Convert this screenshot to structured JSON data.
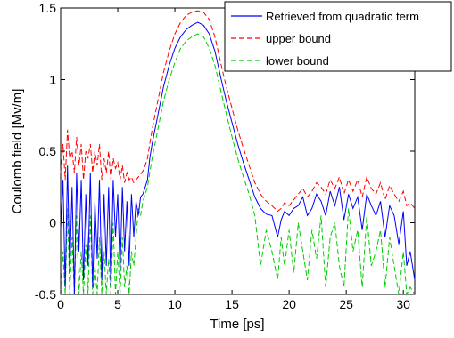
{
  "chart_data": {
    "type": "line",
    "title": "",
    "xlabel": "Time [ps]",
    "ylabel": "Coulomb field [Mv/m]",
    "xlim": [
      0,
      31
    ],
    "ylim": [
      -0.5,
      1.5
    ],
    "xticks": [
      0,
      5,
      10,
      15,
      20,
      25,
      30
    ],
    "xtick_labels": [
      "0",
      "5",
      "10",
      "15",
      "20",
      "25",
      "30"
    ],
    "yticks": [
      -0.5,
      0,
      0.5,
      1,
      1.5
    ],
    "ytick_labels": [
      "-0.5",
      "0",
      "0.5",
      "1",
      "1.5"
    ],
    "grid": false,
    "legend_position": "top-right",
    "series": [
      {
        "name": "Retrieved from quadratic term",
        "color": "#0000ff",
        "style": "solid",
        "x": [
          0,
          0.2,
          0.4,
          0.6,
          0.8,
          1,
          1.2,
          1.4,
          1.6,
          1.8,
          2,
          2.2,
          2.4,
          2.6,
          2.8,
          3,
          3.2,
          3.4,
          3.6,
          3.8,
          4,
          4.2,
          4.4,
          4.6,
          4.8,
          5,
          5.2,
          5.4,
          5.6,
          5.8,
          6,
          6.2,
          6.4,
          6.6,
          6.8,
          7,
          7.2,
          7.4,
          7.6,
          7.8,
          8,
          8.5,
          9,
          9.5,
          10,
          10.5,
          11,
          11.5,
          12,
          12.5,
          13,
          13.5,
          14,
          14.5,
          15,
          15.5,
          16,
          16.5,
          17,
          17.5,
          18,
          18.5,
          19,
          19.3,
          19.6,
          20,
          20.4,
          20.8,
          21.2,
          21.6,
          22,
          22.4,
          22.8,
          23.2,
          23.6,
          24,
          24.4,
          24.8,
          25.2,
          25.6,
          26,
          26.4,
          26.8,
          27.2,
          27.6,
          28,
          28.4,
          28.8,
          29.2,
          29.6,
          30,
          30.3,
          30.6,
          31
        ],
        "y": [
          -0.05,
          0.3,
          -0.45,
          0.4,
          -0.35,
          0.25,
          -0.5,
          0.35,
          -0.2,
          0.3,
          -0.4,
          0.2,
          -0.3,
          0.35,
          -0.45,
          0.15,
          -0.25,
          0.3,
          -0.4,
          0.2,
          -0.3,
          0.25,
          -0.45,
          0.3,
          -0.1,
          0.2,
          -0.35,
          0.25,
          -0.2,
          0.15,
          -0.3,
          0.2,
          -0.1,
          0.15,
          0.05,
          0.18,
          0.2,
          0.25,
          0.3,
          0.45,
          0.55,
          0.75,
          0.95,
          1.1,
          1.22,
          1.3,
          1.35,
          1.38,
          1.4,
          1.38,
          1.32,
          1.2,
          1.02,
          0.85,
          0.7,
          0.55,
          0.42,
          0.3,
          0.18,
          0.1,
          0.06,
          0.05,
          -0.1,
          0.02,
          0.08,
          0.05,
          0.1,
          0.12,
          0.18,
          0.05,
          0.1,
          0.2,
          0.15,
          0.05,
          0.22,
          0.12,
          0.25,
          0.02,
          0.2,
          0.1,
          0.18,
          -0.05,
          0.2,
          0.12,
          0.05,
          0.15,
          -0.1,
          0.12,
          0.05,
          -0.15,
          0.08,
          -0.3,
          -0.2,
          -0.4
        ]
      },
      {
        "name": "upper bound",
        "color": "#ff0000",
        "style": "dashed",
        "x": [
          0,
          0.2,
          0.4,
          0.6,
          0.8,
          1,
          1.2,
          1.4,
          1.6,
          1.8,
          2,
          2.2,
          2.4,
          2.6,
          2.8,
          3,
          3.2,
          3.4,
          3.6,
          3.8,
          4,
          4.2,
          4.4,
          4.6,
          4.8,
          5,
          5.2,
          5.4,
          5.6,
          5.8,
          6,
          6.2,
          6.4,
          6.6,
          6.8,
          7,
          7.2,
          7.4,
          7.6,
          7.8,
          8,
          8.5,
          9,
          9.5,
          10,
          10.5,
          11,
          11.5,
          12,
          12.5,
          13,
          13.5,
          14,
          14.5,
          15,
          15.5,
          16,
          16.5,
          17,
          17.5,
          18,
          18.5,
          19,
          19.3,
          19.6,
          20,
          20.4,
          20.8,
          21.2,
          21.6,
          22,
          22.4,
          22.8,
          23.2,
          23.6,
          24,
          24.4,
          24.8,
          25.2,
          25.6,
          26,
          26.4,
          26.8,
          27.2,
          27.6,
          28,
          28.4,
          28.8,
          29.2,
          29.6,
          30,
          30.3,
          30.6,
          31
        ],
        "y": [
          0.35,
          0.55,
          0.3,
          0.65,
          0.45,
          0.5,
          0.35,
          0.6,
          0.4,
          0.55,
          0.3,
          0.5,
          0.45,
          0.55,
          0.35,
          0.5,
          0.4,
          0.55,
          0.3,
          0.45,
          0.35,
          0.5,
          0.3,
          0.45,
          0.38,
          0.42,
          0.3,
          0.4,
          0.28,
          0.35,
          0.3,
          0.32,
          0.28,
          0.3,
          0.32,
          0.34,
          0.36,
          0.4,
          0.45,
          0.55,
          0.65,
          0.85,
          1.05,
          1.2,
          1.32,
          1.4,
          1.45,
          1.47,
          1.48,
          1.47,
          1.42,
          1.3,
          1.12,
          0.95,
          0.8,
          0.65,
          0.52,
          0.4,
          0.28,
          0.2,
          0.15,
          0.12,
          0.08,
          0.1,
          0.14,
          0.12,
          0.16,
          0.2,
          0.24,
          0.18,
          0.22,
          0.28,
          0.25,
          0.2,
          0.3,
          0.24,
          0.32,
          0.2,
          0.3,
          0.22,
          0.3,
          0.18,
          0.32,
          0.24,
          0.2,
          0.28,
          0.16,
          0.26,
          0.2,
          0.15,
          0.22,
          0.12,
          0.14,
          0.1
        ]
      },
      {
        "name": "lower bound",
        "color": "#00cc00",
        "style": "dashed",
        "x": [
          0,
          0.2,
          0.4,
          0.6,
          0.8,
          1,
          1.2,
          1.4,
          1.6,
          1.8,
          2,
          2.2,
          2.4,
          2.6,
          2.8,
          3,
          3.2,
          3.4,
          3.6,
          3.8,
          4,
          4.2,
          4.4,
          4.6,
          4.8,
          5,
          5.2,
          5.4,
          5.6,
          5.8,
          6,
          6.2,
          6.4,
          6.6,
          6.8,
          7,
          7.2,
          7.4,
          7.6,
          7.8,
          8,
          8.5,
          9,
          9.5,
          10,
          10.5,
          11,
          11.5,
          12,
          12.5,
          13,
          13.5,
          14,
          14.5,
          15,
          15.5,
          16,
          16.5,
          17,
          17.5,
          18,
          18.5,
          19,
          19.3,
          19.6,
          20,
          20.4,
          20.8,
          21.2,
          21.6,
          22,
          22.4,
          22.8,
          23.2,
          23.6,
          24,
          24.4,
          24.8,
          25.2,
          25.6,
          26,
          26.4,
          26.8,
          27.2,
          27.6,
          28,
          28.4,
          28.8,
          29.2,
          29.6,
          30,
          30.3,
          30.6,
          31
        ],
        "y": [
          -0.5,
          -0.2,
          -0.5,
          0.1,
          -0.5,
          -0.1,
          -0.5,
          0.05,
          -0.5,
          -0.2,
          -0.5,
          -0.15,
          -0.5,
          0.05,
          -0.5,
          -0.3,
          -0.5,
          -0.1,
          -0.5,
          -0.2,
          -0.5,
          -0.25,
          -0.5,
          0.0,
          -0.5,
          -0.2,
          -0.5,
          -0.1,
          -0.45,
          -0.3,
          -0.5,
          -0.2,
          -0.3,
          -0.1,
          0.1,
          0.05,
          0.15,
          0.2,
          0.25,
          0.35,
          0.45,
          0.65,
          0.85,
          1.0,
          1.12,
          1.22,
          1.27,
          1.3,
          1.32,
          1.3,
          1.22,
          1.1,
          0.93,
          0.76,
          0.6,
          0.45,
          0.32,
          0.2,
          0.05,
          -0.3,
          -0.05,
          -0.2,
          -0.4,
          -0.1,
          -0.3,
          -0.05,
          -0.35,
          0.0,
          -0.2,
          -0.4,
          -0.05,
          -0.25,
          0.05,
          -0.45,
          -0.1,
          0.0,
          -0.3,
          -0.45,
          0.1,
          -0.2,
          -0.05,
          -0.45,
          0.05,
          -0.3,
          -0.2,
          -0.05,
          -0.45,
          -0.1,
          -0.3,
          -0.5,
          -0.2,
          -0.5,
          -0.45,
          -0.5
        ]
      }
    ]
  }
}
